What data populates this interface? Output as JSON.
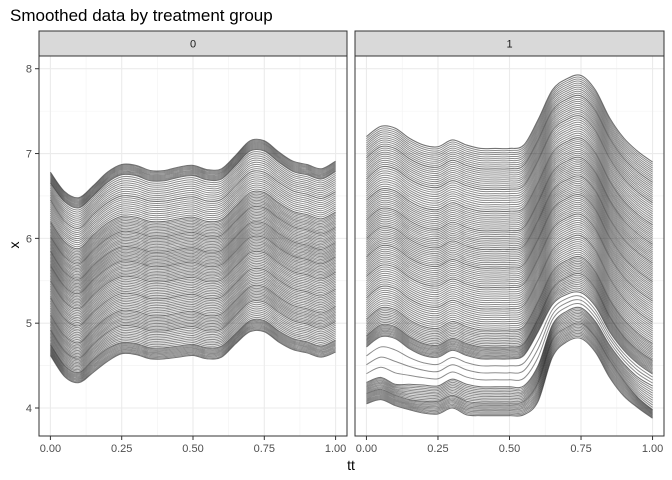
{
  "chart_data": {
    "type": "line",
    "title": "Smoothed data by treatment group",
    "xlabel": "tt",
    "ylabel": "x",
    "xlim": [
      -0.04,
      1.04
    ],
    "ylim": [
      3.67,
      8.15
    ],
    "x_ticks": [
      0.0,
      0.25,
      0.5,
      0.75,
      1.0
    ],
    "x_tick_labels": [
      "0.00",
      "0.25",
      "0.50",
      "0.75",
      "1.00"
    ],
    "y_ticks": [
      4,
      5,
      6,
      7,
      8
    ],
    "y_tick_labels": [
      "4",
      "5",
      "6",
      "7",
      "8"
    ],
    "grid": true,
    "facets": [
      {
        "label": "0",
        "x": [
          0.0,
          0.05,
          0.1,
          0.15,
          0.2,
          0.25,
          0.3,
          0.35,
          0.4,
          0.45,
          0.5,
          0.55,
          0.6,
          0.65,
          0.7,
          0.75,
          0.8,
          0.85,
          0.9,
          0.95,
          1.0
        ],
        "series": [
          {
            "values": [
              6.78,
              6.55,
              6.48,
              6.62,
              6.78,
              6.87,
              6.86,
              6.8,
              6.8,
              6.84,
              6.86,
              6.81,
              6.82,
              6.98,
              7.15,
              7.15,
              7.02,
              6.91,
              6.87,
              6.82,
              6.91
            ]
          },
          {
            "values": [
              6.65,
              6.43,
              6.36,
              6.5,
              6.66,
              6.75,
              6.74,
              6.68,
              6.68,
              6.72,
              6.74,
              6.69,
              6.7,
              6.86,
              7.03,
              7.03,
              6.9,
              6.79,
              6.75,
              6.7,
              6.79
            ]
          },
          {
            "values": [
              6.45,
              6.2,
              6.12,
              6.28,
              6.42,
              6.5,
              6.49,
              6.44,
              6.44,
              6.47,
              6.49,
              6.44,
              6.46,
              6.62,
              6.78,
              6.78,
              6.66,
              6.56,
              6.52,
              6.47,
              6.55
            ]
          },
          {
            "values": [
              6.2,
              5.96,
              5.88,
              6.04,
              6.18,
              6.26,
              6.25,
              6.2,
              6.2,
              6.23,
              6.25,
              6.2,
              6.22,
              6.38,
              6.54,
              6.54,
              6.42,
              6.32,
              6.28,
              6.23,
              6.31
            ]
          },
          {
            "values": [
              6.02,
              5.78,
              5.7,
              5.86,
              6.0,
              6.08,
              6.07,
              6.02,
              6.02,
              6.05,
              6.07,
              6.02,
              6.04,
              6.2,
              6.36,
              6.36,
              6.24,
              6.14,
              6.1,
              6.05,
              6.13
            ]
          },
          {
            "values": [
              5.85,
              5.6,
              5.52,
              5.68,
              5.82,
              5.9,
              5.89,
              5.84,
              5.84,
              5.87,
              5.89,
              5.84,
              5.86,
              6.02,
              6.18,
              6.18,
              6.06,
              5.96,
              5.92,
              5.87,
              5.95
            ]
          },
          {
            "values": [
              5.68,
              5.43,
              5.35,
              5.51,
              5.65,
              5.73,
              5.72,
              5.67,
              5.67,
              5.7,
              5.72,
              5.67,
              5.69,
              5.85,
              6.01,
              6.01,
              5.89,
              5.79,
              5.75,
              5.7,
              5.78
            ]
          },
          {
            "values": [
              5.5,
              5.25,
              5.17,
              5.33,
              5.47,
              5.55,
              5.54,
              5.49,
              5.49,
              5.52,
              5.54,
              5.49,
              5.51,
              5.67,
              5.83,
              5.83,
              5.71,
              5.61,
              5.57,
              5.52,
              5.6
            ]
          },
          {
            "values": [
              5.3,
              5.05,
              4.97,
              5.13,
              5.27,
              5.35,
              5.34,
              5.29,
              5.29,
              5.32,
              5.34,
              5.29,
              5.31,
              5.47,
              5.63,
              5.63,
              5.51,
              5.41,
              5.37,
              5.32,
              5.4
            ]
          },
          {
            "values": [
              5.1,
              4.85,
              4.77,
              4.93,
              5.07,
              5.15,
              5.14,
              5.09,
              5.09,
              5.12,
              5.14,
              5.09,
              5.11,
              5.27,
              5.43,
              5.43,
              5.31,
              5.21,
              5.17,
              5.12,
              5.2
            ]
          },
          {
            "values": [
              4.92,
              4.67,
              4.59,
              4.75,
              4.89,
              4.97,
              4.96,
              4.91,
              4.91,
              4.94,
              4.96,
              4.91,
              4.93,
              5.09,
              5.25,
              5.25,
              5.13,
              5.03,
              4.99,
              4.94,
              5.02
            ]
          },
          {
            "values": [
              4.75,
              4.5,
              4.42,
              4.57,
              4.7,
              4.77,
              4.76,
              4.71,
              4.71,
              4.73,
              4.75,
              4.71,
              4.73,
              4.88,
              5.03,
              5.03,
              4.91,
              4.82,
              4.78,
              4.73,
              4.8
            ]
          },
          {
            "values": [
              4.62,
              4.37,
              4.3,
              4.42,
              4.55,
              4.64,
              4.63,
              4.58,
              4.58,
              4.6,
              4.62,
              4.58,
              4.6,
              4.76,
              4.9,
              4.9,
              4.78,
              4.69,
              4.65,
              4.6,
              4.66
            ]
          }
        ]
      },
      {
        "label": "1",
        "x": [
          0.0,
          0.05,
          0.1,
          0.15,
          0.2,
          0.25,
          0.3,
          0.35,
          0.4,
          0.45,
          0.5,
          0.55,
          0.6,
          0.65,
          0.7,
          0.75,
          0.8,
          0.85,
          0.9,
          0.95,
          1.0
        ],
        "series": [
          {
            "values": [
              7.2,
              7.32,
              7.3,
              7.18,
              7.1,
              7.08,
              7.16,
              7.1,
              7.06,
              7.06,
              7.06,
              7.1,
              7.4,
              7.75,
              7.88,
              7.92,
              7.75,
              7.42,
              7.18,
              7.02,
              6.9
            ]
          },
          {
            "values": [
              6.95,
              7.08,
              7.06,
              6.94,
              6.86,
              6.84,
              6.92,
              6.86,
              6.82,
              6.82,
              6.82,
              6.86,
              7.16,
              7.51,
              7.64,
              7.68,
              7.51,
              7.18,
              6.94,
              6.78,
              6.66
            ]
          },
          {
            "values": [
              6.7,
              6.84,
              6.82,
              6.7,
              6.62,
              6.6,
              6.68,
              6.62,
              6.58,
              6.58,
              6.58,
              6.62,
              6.92,
              7.27,
              7.4,
              7.44,
              7.27,
              6.94,
              6.7,
              6.54,
              6.42
            ]
          },
          {
            "values": [
              6.45,
              6.58,
              6.56,
              6.44,
              6.36,
              6.34,
              6.42,
              6.36,
              6.32,
              6.32,
              6.32,
              6.36,
              6.66,
              7.01,
              7.14,
              7.18,
              7.01,
              6.68,
              6.44,
              6.28,
              6.16
            ]
          },
          {
            "values": [
              6.22,
              6.35,
              6.33,
              6.21,
              6.13,
              6.11,
              6.19,
              6.13,
              6.09,
              6.09,
              6.09,
              6.13,
              6.43,
              6.78,
              6.91,
              6.95,
              6.78,
              6.45,
              6.21,
              6.05,
              5.93
            ]
          },
          {
            "values": [
              6.0,
              6.13,
              6.11,
              5.99,
              5.91,
              5.89,
              5.97,
              5.91,
              5.87,
              5.87,
              5.87,
              5.91,
              6.21,
              6.56,
              6.69,
              6.73,
              6.56,
              6.23,
              5.99,
              5.83,
              5.71
            ]
          },
          {
            "values": [
              5.78,
              5.91,
              5.89,
              5.77,
              5.69,
              5.67,
              5.75,
              5.69,
              5.65,
              5.65,
              5.65,
              5.69,
              5.99,
              6.34,
              6.47,
              6.51,
              6.34,
              6.01,
              5.77,
              5.61,
              5.49
            ]
          },
          {
            "values": [
              5.55,
              5.68,
              5.66,
              5.54,
              5.46,
              5.44,
              5.52,
              5.46,
              5.42,
              5.42,
              5.42,
              5.46,
              5.76,
              6.11,
              6.24,
              6.28,
              6.11,
              5.78,
              5.54,
              5.38,
              5.26
            ]
          },
          {
            "values": [
              5.3,
              5.43,
              5.41,
              5.29,
              5.21,
              5.19,
              5.27,
              5.21,
              5.17,
              5.17,
              5.17,
              5.21,
              5.51,
              5.86,
              5.99,
              6.03,
              5.86,
              5.53,
              5.29,
              5.13,
              5.01
            ]
          },
          {
            "values": [
              5.05,
              5.18,
              5.16,
              5.04,
              4.96,
              4.94,
              5.02,
              4.96,
              4.92,
              4.92,
              4.92,
              4.96,
              5.26,
              5.61,
              5.74,
              5.78,
              5.61,
              5.28,
              5.04,
              4.88,
              4.76
            ]
          },
          {
            "values": [
              4.85,
              4.98,
              4.96,
              4.84,
              4.76,
              4.74,
              4.82,
              4.76,
              4.72,
              4.72,
              4.72,
              4.76,
              5.06,
              5.41,
              5.54,
              5.58,
              5.41,
              5.08,
              4.84,
              4.68,
              4.56
            ]
          },
          {
            "values": [
              4.72,
              4.84,
              4.82,
              4.7,
              4.62,
              4.6,
              4.68,
              4.62,
              4.58,
              4.58,
              4.58,
              4.62,
              4.9,
              5.22,
              5.34,
              5.36,
              5.2,
              4.9,
              4.68,
              4.52,
              4.4
            ]
          },
          {
            "values": [
              4.3,
              4.36,
              4.28,
              4.28,
              4.27,
              4.26,
              4.34,
              4.28,
              4.25,
              4.25,
              4.25,
              4.26,
              4.5,
              4.98,
              5.14,
              5.18,
              5.02,
              4.74,
              4.52,
              4.36,
              4.26
            ]
          },
          {
            "values": [
              4.17,
              4.22,
              4.15,
              4.1,
              4.08,
              4.08,
              4.15,
              4.08,
              4.06,
              4.06,
              4.06,
              4.08,
              4.3,
              4.8,
              4.95,
              5.0,
              4.84,
              4.56,
              4.32,
              4.12,
              3.98
            ]
          },
          {
            "values": [
              4.05,
              4.1,
              4.03,
              3.98,
              3.94,
              3.93,
              4.0,
              3.92,
              3.91,
              3.91,
              3.91,
              3.92,
              4.08,
              4.6,
              4.78,
              4.82,
              4.66,
              4.36,
              4.14,
              4.0,
              3.88
            ]
          }
        ]
      }
    ]
  }
}
